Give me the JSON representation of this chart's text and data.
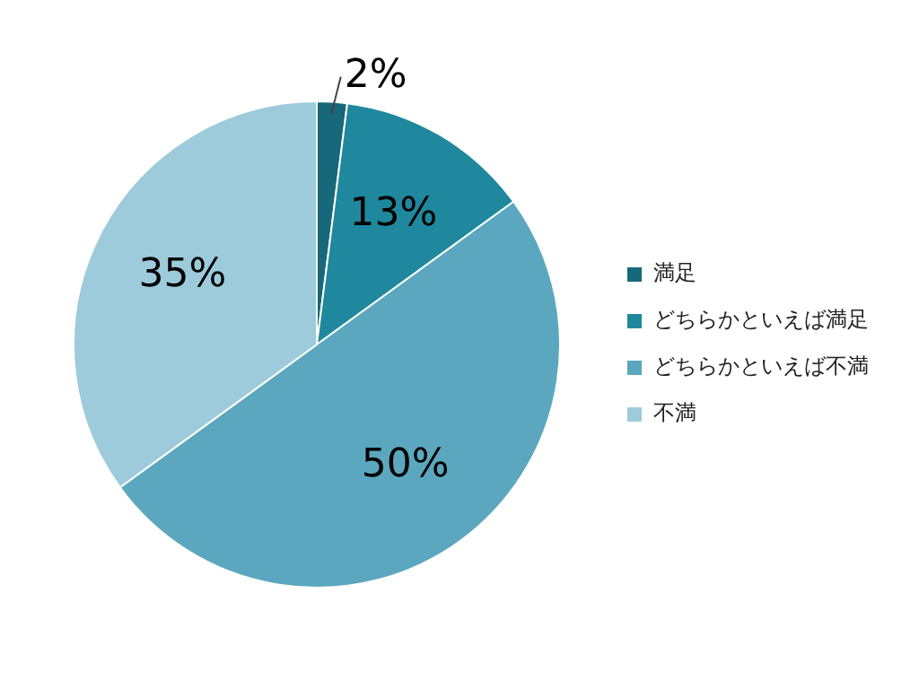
{
  "chart_data": {
    "type": "pie",
    "categories": [
      "満足",
      "どちらかといえば満足",
      "どちらかといえば不満",
      "不満"
    ],
    "values": [
      2,
      13,
      50,
      35
    ],
    "colors": [
      "#17687a",
      "#1f889e",
      "#5ba7bf",
      "#9dcbdb"
    ],
    "value_labels": [
      "2%",
      "13%",
      "50%",
      "35%"
    ],
    "legend": "right"
  }
}
